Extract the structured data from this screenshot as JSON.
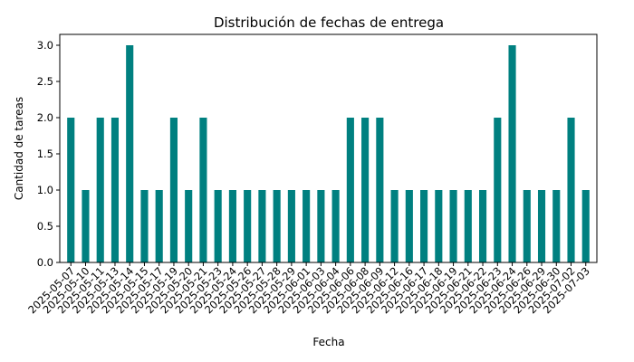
{
  "chart_data": {
    "type": "bar",
    "title": "Distribución de fechas de entrega",
    "xlabel": "Fecha",
    "ylabel": "Cantidad de tareas",
    "ylim": [
      0,
      3.15
    ],
    "yticks": [
      "0.0",
      "0.5",
      "1.0",
      "1.5",
      "2.0",
      "2.5",
      "3.0"
    ],
    "bar_color": "#008080",
    "grid": false,
    "legend": false,
    "categories": [
      "2025-05-07",
      "2025-05-10",
      "2025-05-11",
      "2025-05-13",
      "2025-05-14",
      "2025-05-15",
      "2025-05-17",
      "2025-05-19",
      "2025-05-20",
      "2025-05-21",
      "2025-05-23",
      "2025-05-24",
      "2025-05-26",
      "2025-05-27",
      "2025-05-28",
      "2025-05-29",
      "2025-06-01",
      "2025-06-03",
      "2025-06-04",
      "2025-06-06",
      "2025-06-08",
      "2025-06-09",
      "2025-06-12",
      "2025-06-16",
      "2025-06-17",
      "2025-06-18",
      "2025-06-19",
      "2025-06-21",
      "2025-06-22",
      "2025-06-23",
      "2025-06-24",
      "2025-06-26",
      "2025-06-29",
      "2025-06-30",
      "2025-07-02",
      "2025-07-03"
    ],
    "values": [
      2,
      1,
      2,
      2,
      3,
      1,
      1,
      2,
      1,
      2,
      1,
      1,
      1,
      1,
      1,
      1,
      1,
      1,
      1,
      2,
      2,
      2,
      1,
      1,
      1,
      1,
      1,
      1,
      1,
      2,
      3,
      1,
      1,
      1,
      2,
      1
    ]
  }
}
